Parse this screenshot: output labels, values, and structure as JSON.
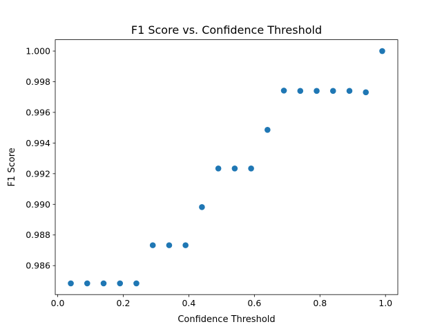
{
  "chart_data": {
    "type": "scatter",
    "title": "F1 Score vs. Confidence Threshold",
    "xlabel": "Confidence Threshold",
    "ylabel": "F1 Score",
    "xlim": [
      -0.0075,
      1.0375
    ],
    "ylim": [
      0.98411,
      1.00074
    ],
    "xticks": [
      0.0,
      0.2,
      0.4,
      0.6,
      0.8,
      1.0
    ],
    "xtick_labels": [
      "0.0",
      "0.2",
      "0.4",
      "0.6",
      "0.8",
      "1.0"
    ],
    "yticks": [
      0.986,
      0.988,
      0.99,
      0.992,
      0.994,
      0.996,
      0.998,
      1.0
    ],
    "ytick_labels": [
      "0.986",
      "0.988",
      "0.990",
      "0.992",
      "0.994",
      "0.996",
      "0.998",
      "1.000"
    ],
    "grid": false,
    "legend": "none",
    "marker_color": "#1f77b4",
    "series": [
      {
        "x": [
          0.04,
          0.09,
          0.14,
          0.19,
          0.24,
          0.29,
          0.34,
          0.39,
          0.44,
          0.49,
          0.54,
          0.59,
          0.64,
          0.69,
          0.74,
          0.79,
          0.84,
          0.89,
          0.94,
          0.99
        ],
        "y": [
          0.98484,
          0.98484,
          0.98484,
          0.98484,
          0.98484,
          0.98733,
          0.98733,
          0.98733,
          0.98982,
          0.99234,
          0.99234,
          0.99234,
          0.99486,
          0.99742,
          0.9974,
          0.9974,
          0.9974,
          0.9974,
          0.99731,
          1.0
        ]
      }
    ]
  }
}
